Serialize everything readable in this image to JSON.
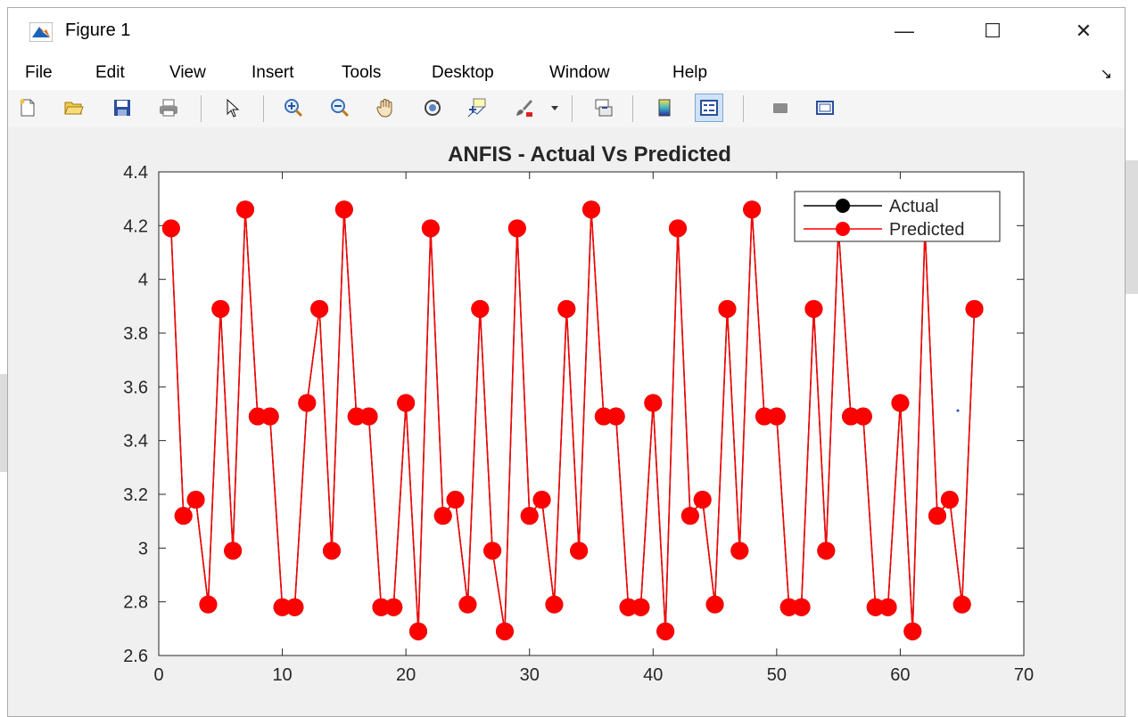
{
  "window": {
    "title": "Figure 1",
    "controls": {
      "minimize": "—",
      "maximize": "☐",
      "close": "✕"
    }
  },
  "menubar": {
    "items": [
      "File",
      "Edit",
      "View",
      "Insert",
      "Tools",
      "Desktop",
      "Window",
      "Help"
    ],
    "end_arrow": "↘"
  },
  "toolbar": {
    "buttons": [
      "new-figure-icon",
      "open-file-icon",
      "save-icon",
      "print-icon",
      "pointer-icon",
      "zoom-in-icon",
      "zoom-out-icon",
      "pan-hand-icon",
      "rotate-3d-icon",
      "data-cursor-icon",
      "brush-icon",
      "brush-dropdown-icon",
      "link-plot-icon",
      "insert-colorbar-icon",
      "insert-legend-icon",
      "hide-plot-tools-icon",
      "show-plot-tools-icon"
    ]
  },
  "chart_data": {
    "type": "line",
    "title": "ANFIS - Actual Vs Predicted",
    "xlabel": "",
    "ylabel": "",
    "xlim": [
      0,
      70
    ],
    "ylim": [
      2.6,
      4.4
    ],
    "xticks": [
      0,
      10,
      20,
      30,
      40,
      50,
      60,
      70
    ],
    "yticks": [
      2.6,
      2.8,
      3,
      3.2,
      3.4,
      3.6,
      3.8,
      4,
      4.2,
      4.4
    ],
    "ytick_labels": [
      "2.6",
      "2.8",
      "3",
      "3.2",
      "3.4",
      "3.6",
      "3.8",
      "4",
      "4.2",
      "4.4"
    ],
    "grid": false,
    "legend_position": "top-right",
    "x": [
      1,
      2,
      3,
      4,
      5,
      6,
      7,
      8,
      9,
      10,
      11,
      12,
      13,
      14,
      15,
      16,
      17,
      18,
      19,
      20,
      21,
      22,
      23,
      24,
      25,
      26,
      27,
      28,
      29,
      30,
      31,
      32,
      33,
      34,
      35,
      36,
      37,
      38,
      39,
      40,
      41,
      42,
      43,
      44,
      45,
      46,
      47,
      48,
      49,
      50,
      51,
      52,
      53,
      54,
      55,
      56,
      57,
      58,
      59,
      60,
      61,
      62,
      63,
      64,
      65,
      66
    ],
    "series": [
      {
        "name": "Actual",
        "color": "#000000",
        "values": [
          4.19,
          3.12,
          3.18,
          2.79,
          3.89,
          2.99,
          4.26,
          3.49,
          3.49,
          2.78,
          2.78,
          3.54,
          3.89,
          2.99,
          4.26,
          3.49,
          3.49,
          2.78,
          2.78,
          3.54,
          2.69,
          4.19,
          3.12,
          3.18,
          2.79,
          3.89,
          2.99,
          2.69,
          4.19,
          3.12,
          3.18,
          2.79,
          3.89,
          2.99,
          4.26,
          3.49,
          3.49,
          2.78,
          2.78,
          3.54,
          2.69,
          4.19,
          3.12,
          3.18,
          2.79,
          3.89,
          2.99,
          4.26,
          3.49,
          3.49,
          2.78,
          2.78,
          3.89,
          2.99,
          4.19,
          3.49,
          3.49,
          2.78,
          2.78,
          3.54,
          2.69,
          4.19,
          3.12,
          3.18,
          2.79,
          3.89
        ]
      },
      {
        "name": "Predicted",
        "color": "#ff0000",
        "values": [
          4.19,
          3.12,
          3.18,
          2.79,
          3.89,
          2.99,
          4.26,
          3.49,
          3.49,
          2.78,
          2.78,
          3.54,
          3.89,
          2.99,
          4.26,
          3.49,
          3.49,
          2.78,
          2.78,
          3.54,
          2.69,
          4.19,
          3.12,
          3.18,
          2.79,
          3.89,
          2.99,
          2.69,
          4.19,
          3.12,
          3.18,
          2.79,
          3.89,
          2.99,
          4.26,
          3.49,
          3.49,
          2.78,
          2.78,
          3.54,
          2.69,
          4.19,
          3.12,
          3.18,
          2.79,
          3.89,
          2.99,
          4.26,
          3.49,
          3.49,
          2.78,
          2.78,
          3.89,
          2.99,
          4.19,
          3.49,
          3.49,
          2.78,
          2.78,
          3.54,
          2.69,
          4.19,
          3.12,
          3.18,
          2.79,
          3.89
        ]
      }
    ]
  }
}
